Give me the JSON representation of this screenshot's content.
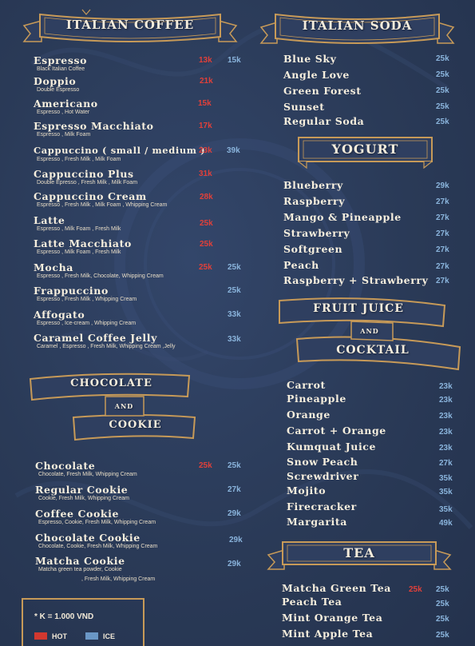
{
  "legend": {
    "note": "*  K = 1.000 VND",
    "hot_label": "HOT",
    "ice_label": "ICE",
    "hot_color": "#d2382f",
    "ice_color": "#6a97c6"
  },
  "colors": {
    "background": "#2a3a57",
    "banner_gold": "#c79a58",
    "hot_price": "#e0403a",
    "ice_price": "#8ab4dc"
  },
  "sections": {
    "italian_coffee": {
      "title": "ITALIAN COFFEE",
      "items": [
        {
          "name": "Espresso",
          "desc": "Black Italian Coffee",
          "hot": "13k",
          "ice": "15k"
        },
        {
          "name": "Doppio",
          "desc": "Double Espresso",
          "hot": "21k",
          "ice": ""
        },
        {
          "name": "Americano",
          "desc": "Espresso , Hot Water",
          "hot": "15k",
          "ice": ""
        },
        {
          "name": "Espresso Macchiato",
          "desc": "Espresso , Milk Foam",
          "hot": "17k",
          "ice": ""
        },
        {
          "name": "Cappuccino ( small / medium )",
          "desc": "Espresso , Fresh Milk , Milk Foam",
          "hot": "23k",
          "ice": "39k"
        },
        {
          "name": "Cappuccino Plus",
          "desc": "Double Epresso , Fresh Milk , Milk Foam",
          "hot": "31k",
          "ice": ""
        },
        {
          "name": "Cappuccino Cream",
          "desc": "Espresso , Fresh Milk , Milk Foam , Whipping Cream",
          "hot": "28k",
          "ice": ""
        },
        {
          "name": "Latte",
          "desc": "Espresso , Milk Foam , Fresh Milk",
          "hot": "25k",
          "ice": ""
        },
        {
          "name": "Latte Macchiato",
          "desc": "Espresso , Milk Foam , Fresh Milk",
          "hot": "25k",
          "ice": ""
        },
        {
          "name": "Mocha",
          "desc": "Espresso , Fresh Milk, Chocolate, Whipping Cream",
          "hot": "25k",
          "ice": "25k"
        },
        {
          "name": "Frappuccino",
          "desc": "Espresso , Fresh Milk , Whipping Cream",
          "hot": "",
          "ice": "25k"
        },
        {
          "name": "Affogato",
          "desc": "Espresso , Ice-cream , Whipping Cream",
          "hot": "",
          "ice": "33k"
        },
        {
          "name": "Caramel Coffee Jelly",
          "desc": "Caramel , Espresso , Fresh Milk, Whipping Cream ,Jelly",
          "hot": "",
          "ice": "33k"
        }
      ]
    },
    "chocolate_cookie": {
      "title_1": "CHOCOLATE",
      "title_2": "AND",
      "title_3": "COOKIE",
      "items": [
        {
          "name": "Chocolate",
          "desc": "Chocolate, Fresh Milk, Whipping Cream",
          "desc2": "",
          "hot": "25k",
          "ice": "25k"
        },
        {
          "name": "Regular Cookie",
          "desc": "Cookie, Fresh Milk, Whipping Cream",
          "desc2": "",
          "hot": "",
          "ice": "27k"
        },
        {
          "name": "Coffee Cookie",
          "desc": "Espresso, Cookie, Fresh Milk, Whipping Cream",
          "desc2": "",
          "hot": "",
          "ice": "29k"
        },
        {
          "name": "Chocolate Cookie",
          "desc": "Chocolate, Cookie, Fresh Milk, Whipping Cream",
          "desc2": "",
          "hot": "",
          "ice": "29k"
        },
        {
          "name": "Matcha Cookie",
          "desc": "Matcha green tea powder, Cookie",
          "desc2": ", Fresh Milk, Whipping Cream",
          "hot": "",
          "ice": "29k"
        }
      ]
    },
    "italian_soda": {
      "title": "ITALIAN SODA",
      "items": [
        {
          "name": "Blue Sky",
          "ice": "25k"
        },
        {
          "name": "Angle Love",
          "ice": "25k"
        },
        {
          "name": "Green Forest",
          "ice": "25k"
        },
        {
          "name": "Sunset",
          "ice": "25k"
        },
        {
          "name": "Regular Soda",
          "ice": "25k"
        }
      ]
    },
    "yogurt": {
      "title": "YOGURT",
      "items": [
        {
          "name": "Blueberry",
          "ice": "29k"
        },
        {
          "name": "Raspberry",
          "ice": "27k"
        },
        {
          "name": "Mango & Pineapple",
          "ice": "27k"
        },
        {
          "name": "Strawberry",
          "ice": "27k"
        },
        {
          "name": "Softgreen",
          "ice": "27k"
        },
        {
          "name": "Peach",
          "ice": "27k"
        },
        {
          "name": "Raspberry + Strawberry",
          "ice": "27k"
        }
      ]
    },
    "fruit_juice": {
      "title_1": "FRUIT JUICE",
      "title_2": "AND",
      "title_3": "COCKTAIL",
      "items": [
        {
          "name": "Carrot",
          "ice": "23k"
        },
        {
          "name": "Pineapple",
          "ice": "23k"
        },
        {
          "name": "Orange",
          "ice": "23k"
        },
        {
          "name": "Carrot + Orange",
          "ice": "23k"
        },
        {
          "name": "Kumquat Juice",
          "ice": "23k"
        },
        {
          "name": "Snow Peach",
          "ice": "27k"
        },
        {
          "name": "Screwdriver",
          "ice": "35k"
        },
        {
          "name": "Mojito",
          "ice": "35k"
        },
        {
          "name": "Firecracker",
          "ice": "35k"
        },
        {
          "name": "Margarita",
          "ice": "49k"
        }
      ]
    },
    "tea": {
      "title": "TEA",
      "items": [
        {
          "name": "Matcha Green Tea",
          "hot": "25k",
          "ice": "25k"
        },
        {
          "name": "Peach Tea",
          "hot": "",
          "ice": "25k"
        },
        {
          "name": "Mint Orange Tea",
          "hot": "",
          "ice": "25k"
        },
        {
          "name": "Mint Apple Tea",
          "hot": "",
          "ice": "25k"
        }
      ]
    }
  }
}
